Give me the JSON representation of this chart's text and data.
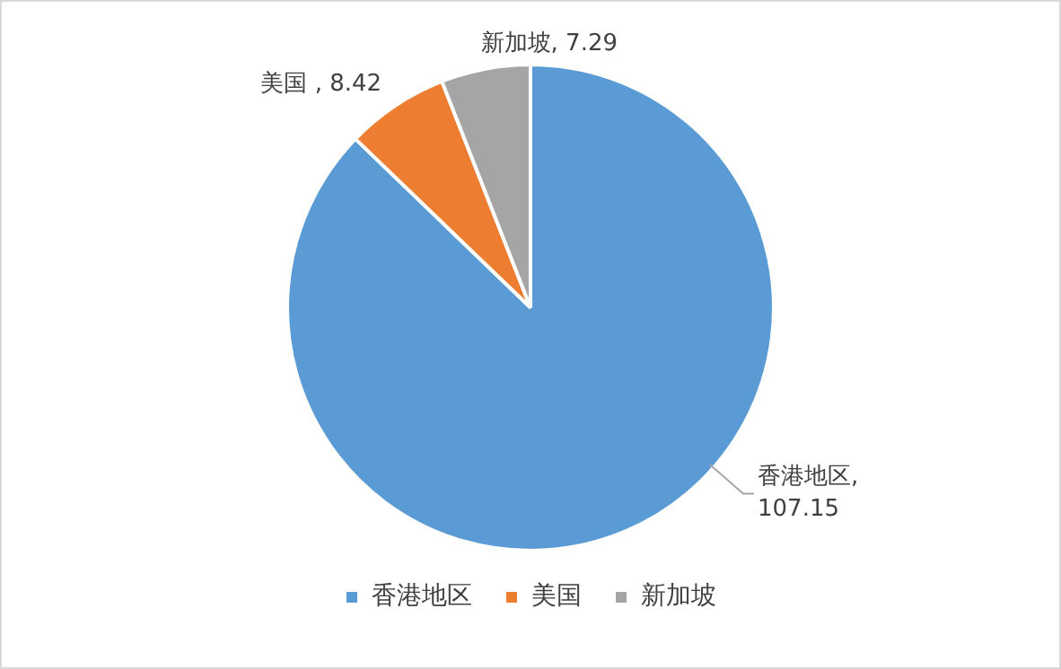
{
  "chart_data": {
    "type": "pie",
    "categories": [
      "香港地区",
      "美国",
      "新加坡"
    ],
    "values": [
      107.15,
      8.42,
      7.29
    ],
    "colors": [
      "#5b9bd5",
      "#ed7d31",
      "#a5a5a5"
    ],
    "value_labels": [
      "香港地区, 107.15",
      "美国 , 8.42",
      "新加坡, 7.29"
    ],
    "legend": "bottom"
  }
}
